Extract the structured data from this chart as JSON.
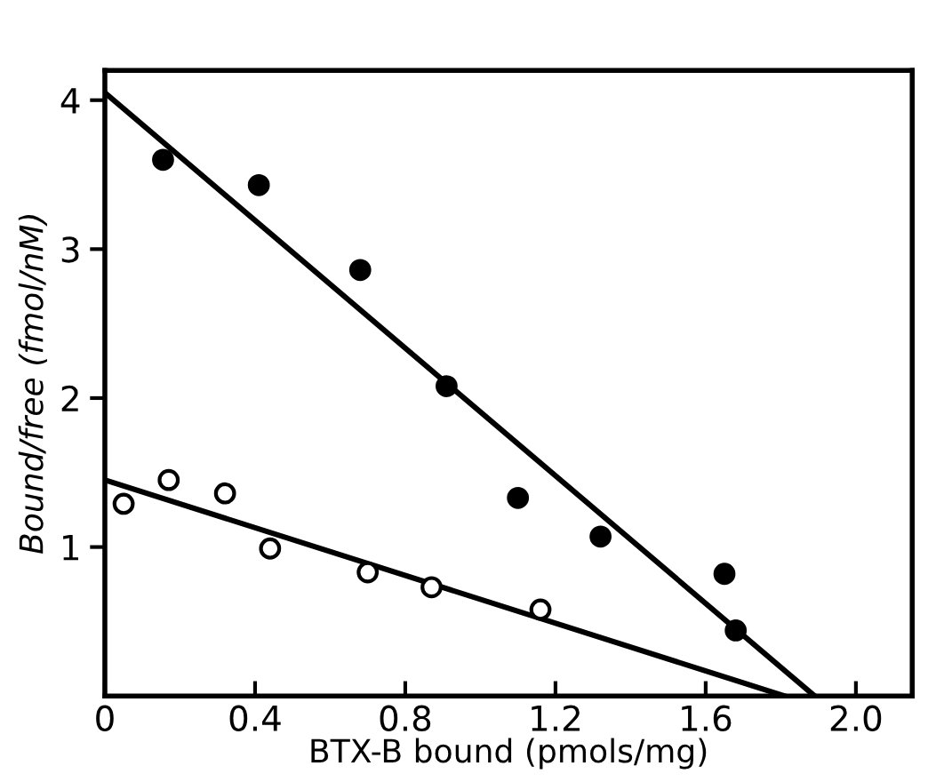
{
  "chart_data": {
    "type": "scatter",
    "xlabel": "BTX-B bound (pmols/mg)",
    "ylabel": "Bound/free (fmol/nM)",
    "xlim": [
      0,
      2.15
    ],
    "ylim": [
      0,
      4.2
    ],
    "xticks": [
      0,
      0.4,
      0.8,
      1.2,
      1.6,
      {
        "value": 2.0,
        "label": "2.0"
      }
    ],
    "yticks": [
      1,
      2,
      3,
      4
    ],
    "grid": false,
    "series": [
      {
        "marker": "circle",
        "color": "#000000",
        "x": [
          0.155,
          0.41,
          0.68,
          0.91,
          1.1,
          1.32,
          1.65,
          1.68
        ],
        "values": [
          3.6,
          3.43,
          2.86,
          2.08,
          1.33,
          1.07,
          0.82,
          0.44
        ]
      },
      {
        "marker": "circle",
        "color": "#ffffff",
        "x": [
          0.05,
          0.17,
          0.32,
          0.44,
          0.7,
          0.87,
          1.16
        ],
        "values": [
          1.29,
          1.45,
          1.36,
          0.99,
          0.83,
          0.73,
          0.58
        ]
      },
      {
        "type": "line",
        "line_style": "solid",
        "color": "#000000",
        "x": [
          0,
          1.89
        ],
        "values": [
          4.05,
          0
        ]
      },
      {
        "type": "line",
        "line_style": "solid",
        "color": "#000000",
        "x": [
          0,
          1.81
        ],
        "values": [
          1.45,
          0
        ]
      }
    ]
  }
}
